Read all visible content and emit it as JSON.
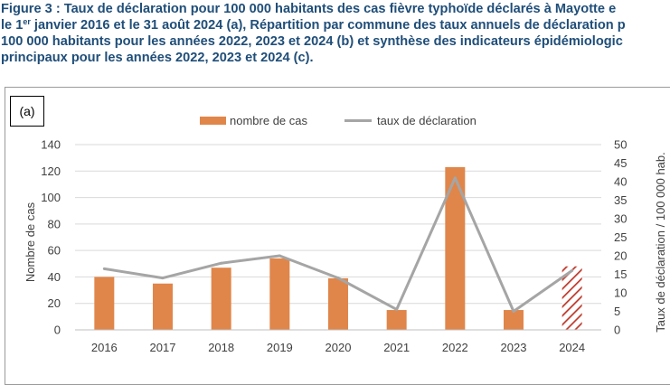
{
  "caption": {
    "line1": "Figure 3 : Taux de déclaration pour 100 000 habitants des cas fièvre typhoïde déclarés à Mayotte e",
    "line2_prefix": "le 1",
    "line2_sup": "er",
    "line2_rest": " janvier 2016 et le 31 août 2024 (a), Répartition par commune des taux annuels de déclaration p",
    "line3": "100 000 habitants pour les années 2022, 2023 et 2024 (b) et synthèse des indicateurs épidémiologic",
    "line4": "principaux pour les années 2022, 2023 et 2024 (c)."
  },
  "panel_label": "(a)",
  "legend": {
    "bar_label": "nombre de cas",
    "line_label": "taux de déclaration"
  },
  "colors": {
    "bar": "#e0864a",
    "line": "#a5a5a5",
    "hatch": "#c0392b",
    "caption": "#1f4e79",
    "grid": "#d9d9d9"
  },
  "chart_data": {
    "type": "bar",
    "categories": [
      "2016",
      "2017",
      "2018",
      "2019",
      "2020",
      "2021",
      "2022",
      "2023",
      "2024"
    ],
    "series": [
      {
        "name": "nombre de cas",
        "type": "bar",
        "axis": "left",
        "values": [
          40,
          35,
          47,
          54,
          39,
          15,
          123,
          15,
          48
        ],
        "hatched": [
          false,
          false,
          false,
          false,
          false,
          false,
          false,
          false,
          true
        ]
      },
      {
        "name": "taux de déclaration",
        "type": "line",
        "axis": "right",
        "values": [
          16.5,
          14,
          18,
          20,
          14,
          5.5,
          41,
          5,
          16
        ]
      }
    ],
    "ylabel": "Nombre de cas",
    "y2label": "Taux de déclaration / 100 000 hab.",
    "ylim": [
      0,
      140
    ],
    "y2lim": [
      0,
      50
    ],
    "yticks": [
      "0",
      "20",
      "40",
      "60",
      "80",
      "100",
      "120",
      "140"
    ],
    "y2ticks": [
      "0",
      "5",
      "10",
      "15",
      "20",
      "25",
      "30",
      "35",
      "40",
      "45",
      "50"
    ],
    "grid": true,
    "legend_position": "top"
  }
}
